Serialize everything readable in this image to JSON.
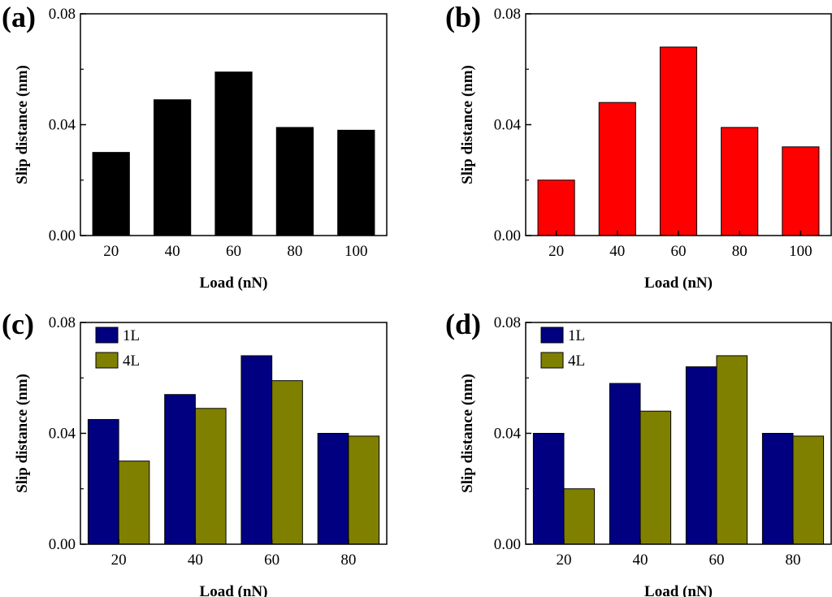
{
  "chart_data": [
    {
      "type": "bar",
      "panel_label": "(a)",
      "categories": [
        "20",
        "40",
        "60",
        "80",
        "100"
      ],
      "series": [
        {
          "values": [
            0.03,
            0.049,
            0.059,
            0.039,
            0.038
          ],
          "color": "#000000"
        }
      ],
      "xlabel": "Load (nN)",
      "ylabel": "Slip distance (nm)",
      "ylim": [
        0,
        0.08
      ],
      "yticks": [
        "0.00",
        "0.04",
        "0.08"
      ],
      "legend": false
    },
    {
      "type": "bar",
      "panel_label": "(b)",
      "categories": [
        "20",
        "40",
        "60",
        "80",
        "100"
      ],
      "series": [
        {
          "values": [
            0.02,
            0.048,
            0.068,
            0.039,
            0.032
          ],
          "color": "#ff0000"
        }
      ],
      "xlabel": "Load (nN)",
      "ylabel": "Slip distance (nm)",
      "ylim": [
        0,
        0.08
      ],
      "yticks": [
        "0.00",
        "0.04",
        "0.08"
      ],
      "legend": false
    },
    {
      "type": "bar",
      "panel_label": "(c)",
      "categories": [
        "20",
        "40",
        "60",
        "80"
      ],
      "series": [
        {
          "name": "1L",
          "values": [
            0.045,
            0.054,
            0.068,
            0.04
          ],
          "color": "#000080"
        },
        {
          "name": "4L",
          "values": [
            0.03,
            0.049,
            0.059,
            0.039
          ],
          "color": "#808000"
        }
      ],
      "xlabel": "Load (nN)",
      "ylabel": "Slip distance (nm)",
      "ylim": [
        0,
        0.08
      ],
      "yticks": [
        "0.00",
        "0.04",
        "0.08"
      ],
      "legend": "top-left"
    },
    {
      "type": "bar",
      "panel_label": "(d)",
      "categories": [
        "20",
        "40",
        "60",
        "80"
      ],
      "series": [
        {
          "name": "1L",
          "values": [
            0.04,
            0.058,
            0.064,
            0.04
          ],
          "color": "#000080"
        },
        {
          "name": "4L",
          "values": [
            0.02,
            0.048,
            0.068,
            0.039
          ],
          "color": "#808000"
        }
      ],
      "xlabel": "Load (nN)",
      "ylabel": "Slip distance (nm)",
      "ylim": [
        0,
        0.08
      ],
      "yticks": [
        "0.00",
        "0.04",
        "0.08"
      ],
      "legend": "top-left"
    }
  ]
}
